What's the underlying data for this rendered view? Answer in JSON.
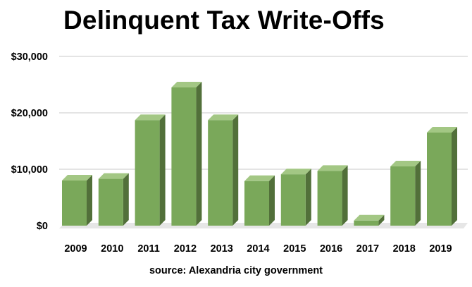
{
  "chart_data": {
    "type": "bar",
    "title": "Delinquent Tax Write-Offs",
    "source": "source: Alexandria city government",
    "categories": [
      "2009",
      "2010",
      "2011",
      "2012",
      "2013",
      "2014",
      "2015",
      "2016",
      "2017",
      "2018",
      "2019"
    ],
    "values": [
      8000,
      8300,
      18700,
      24500,
      18700,
      7900,
      9100,
      9700,
      900,
      10500,
      16500
    ],
    "ylim": [
      0,
      30000
    ],
    "yticks": [
      0,
      10000,
      20000,
      30000
    ],
    "ytick_labels": [
      "$0",
      "$10,000",
      "$20,000",
      "$30,000"
    ],
    "xlabel": "",
    "ylabel": "",
    "grid": true,
    "style": "3d-column",
    "colors": {
      "bar_front": "#7aa85a",
      "bar_top": "#a3c784",
      "bar_side": "#52703a",
      "floor": "#e6e6e6",
      "grid": "#c8c8c8",
      "text": "#000000"
    }
  }
}
